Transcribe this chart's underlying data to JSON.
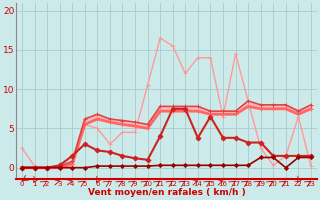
{
  "bg_color": "#cceaea",
  "grid_color": "#aacccc",
  "xlabel": "Vent moyen/en rafales ( km/h )",
  "yticks": [
    0,
    5,
    10,
    15,
    20
  ],
  "ylim": [
    -1.5,
    21
  ],
  "xlim": [
    -0.5,
    23.5
  ],
  "x_values": [
    0,
    1,
    2,
    3,
    4,
    5,
    6,
    7,
    8,
    9,
    10,
    11,
    12,
    13,
    14,
    15,
    16,
    17,
    18,
    19,
    20,
    21,
    22,
    23
  ],
  "series": [
    {
      "name": "light_pink_spike",
      "y": [
        2.5,
        0.2,
        0,
        0,
        0,
        5.5,
        5.0,
        3.0,
        4.5,
        4.5,
        10.5,
        16.5,
        15.5,
        12.0,
        14.0,
        14.0,
        6.5,
        14.5,
        8.5,
        2.5,
        0.3,
        1.5,
        6.5,
        0.2
      ],
      "color": "#ff9999",
      "lw": 1.0,
      "marker": "+",
      "ms": 3,
      "zorder": 2
    },
    {
      "name": "flat_light1",
      "y": [
        0,
        0,
        0,
        0,
        0.3,
        5.8,
        6.5,
        6.0,
        5.8,
        5.5,
        5.3,
        7.5,
        7.5,
        7.5,
        7.5,
        7.0,
        7.0,
        7.0,
        8.2,
        7.8,
        7.8,
        7.8,
        7.2,
        7.8
      ],
      "color": "#ffbbbb",
      "lw": 2.5,
      "marker": "+",
      "ms": 3,
      "zorder": 3
    },
    {
      "name": "flat_medium",
      "y": [
        0,
        0,
        0,
        0,
        0.5,
        5.5,
        6.2,
        5.8,
        5.5,
        5.3,
        5.0,
        7.2,
        7.2,
        7.2,
        7.2,
        6.8,
        6.8,
        6.8,
        7.8,
        7.5,
        7.5,
        7.5,
        6.8,
        7.5
      ],
      "color": "#ff6666",
      "lw": 2.0,
      "marker": "+",
      "ms": 3,
      "zorder": 4
    },
    {
      "name": "flat_dark_top",
      "y": [
        0,
        0,
        0,
        0.2,
        0.8,
        6.2,
        6.8,
        6.2,
        6.0,
        5.8,
        5.5,
        7.8,
        7.8,
        7.8,
        7.8,
        7.2,
        7.2,
        7.2,
        8.5,
        8.0,
        8.0,
        8.0,
        7.2,
        8.0
      ],
      "color": "#dd4444",
      "lw": 1.2,
      "marker": "+",
      "ms": 3,
      "zorder": 5
    },
    {
      "name": "dark_red_diamonds",
      "y": [
        0,
        0,
        0,
        0.3,
        1.5,
        3.0,
        2.2,
        2.0,
        1.5,
        1.2,
        1.0,
        4.0,
        7.5,
        7.5,
        3.8,
        6.5,
        3.8,
        3.8,
        3.2,
        3.2,
        1.5,
        1.5,
        1.5,
        1.5
      ],
      "color": "#cc2222",
      "lw": 1.5,
      "marker": "D",
      "ms": 2.5,
      "zorder": 6
    },
    {
      "name": "darkest_red",
      "y": [
        0,
        0,
        0,
        0,
        0,
        0,
        0.2,
        0.2,
        0.2,
        0.2,
        0.2,
        0.3,
        0.3,
        0.3,
        0.3,
        0.3,
        0.3,
        0.3,
        0.3,
        1.3,
        1.3,
        0,
        1.3,
        1.3
      ],
      "color": "#990000",
      "lw": 1.2,
      "marker": "D",
      "ms": 2,
      "zorder": 7
    }
  ],
  "arrow_directions": [
    225,
    200,
    45,
    70,
    70,
    45,
    200,
    45,
    45,
    45,
    45,
    45,
    45,
    45,
    70,
    45,
    70,
    45,
    45,
    45,
    45,
    45,
    200,
    45
  ]
}
